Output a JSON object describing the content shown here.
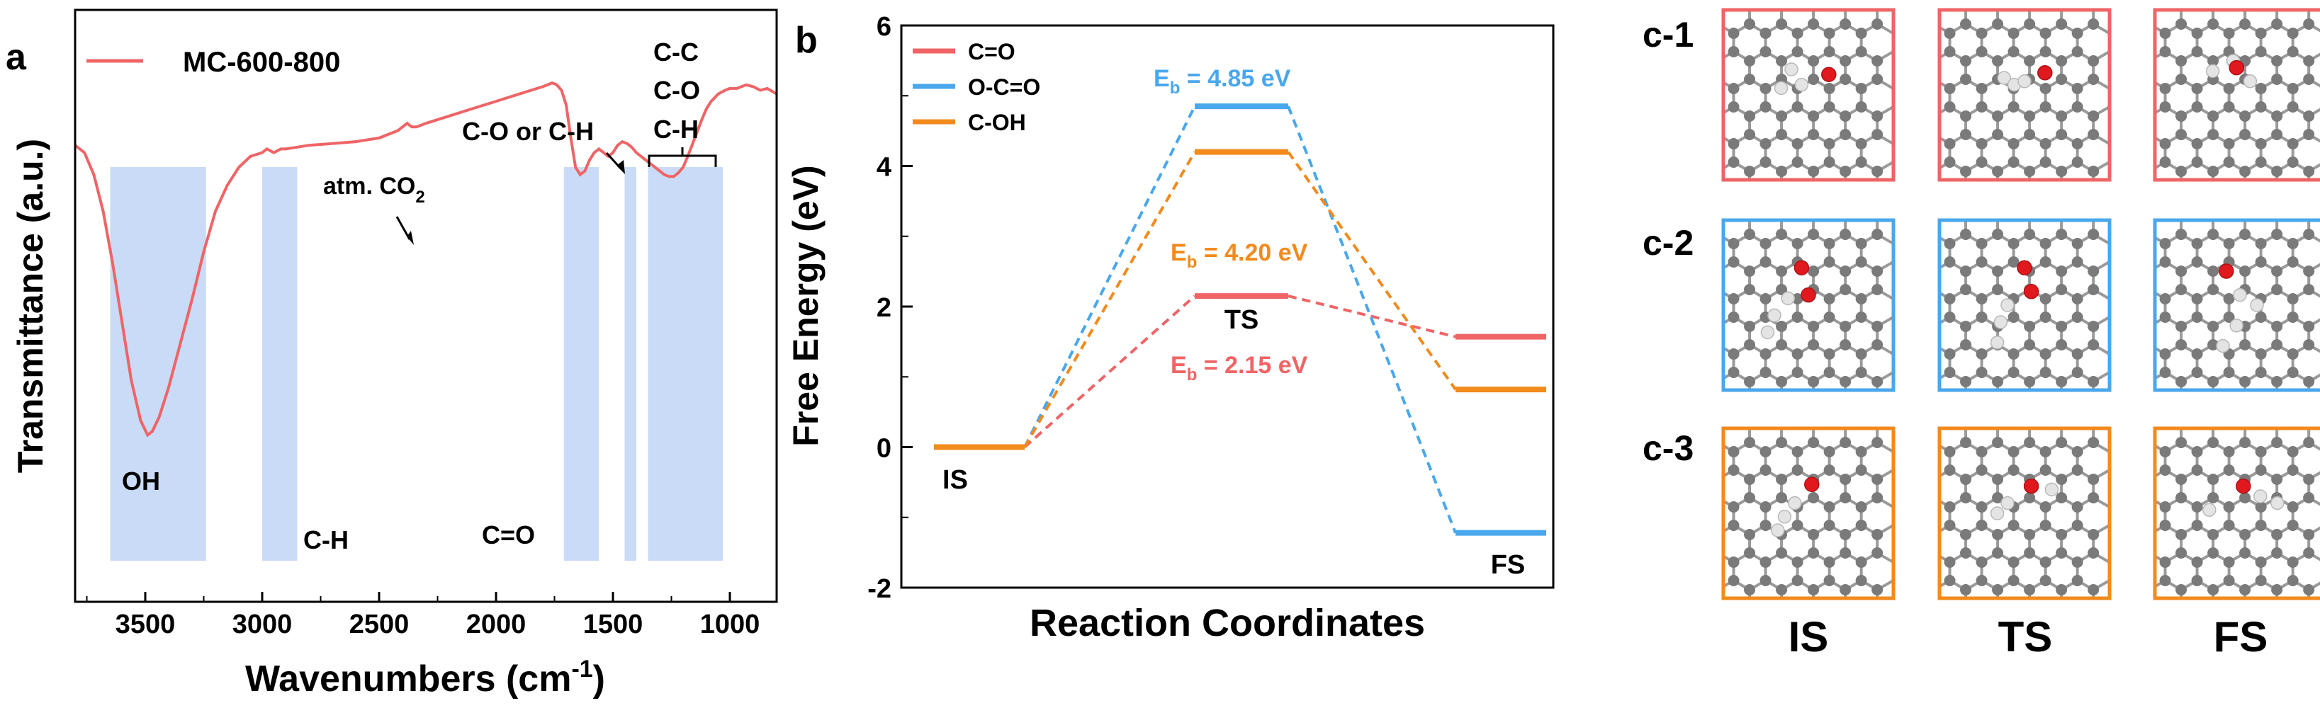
{
  "colors": {
    "red": "#ef6466",
    "blue": "#49a7ec",
    "orange": "#f28a1c",
    "band": "#c9dbf6",
    "axis": "#000000",
    "carbon": "#7a7a7a",
    "hydrogen": "#e4e4e4",
    "oxygen": "#e0191f"
  },
  "chart_data": [
    {
      "panel": "a",
      "type": "line",
      "title": "",
      "xlabel_main": "Wavenumbers (cm",
      "xlabel_sup": "-1",
      "xlabel_end": ")",
      "ylabel": "Transmittance (a.u.)",
      "xlim": [
        3800,
        800
      ],
      "ylim": [
        0,
        100
      ],
      "xticks": [
        "3500",
        "3000",
        "2500",
        "2000",
        "1500",
        "1000"
      ],
      "xtick_values": [
        3500,
        3000,
        2500,
        2000,
        1500,
        1000
      ],
      "legend": "MC-600-800",
      "series": [
        {
          "name": "MC-600-800",
          "x": [
            3800,
            3760,
            3720,
            3680,
            3640,
            3600,
            3560,
            3520,
            3490,
            3470,
            3440,
            3400,
            3350,
            3300,
            3250,
            3200,
            3150,
            3100,
            3050,
            3000,
            2980,
            2950,
            2920,
            2900,
            2850,
            2800,
            2700,
            2600,
            2500,
            2420,
            2380,
            2360,
            2340,
            2300,
            2200,
            2100,
            2000,
            1950,
            1900,
            1850,
            1800,
            1760,
            1740,
            1720,
            1700,
            1680,
            1660,
            1640,
            1620,
            1600,
            1580,
            1560,
            1540,
            1520,
            1500,
            1480,
            1460,
            1440,
            1420,
            1400,
            1380,
            1360,
            1340,
            1320,
            1300,
            1280,
            1260,
            1240,
            1220,
            1200,
            1180,
            1150,
            1120,
            1100,
            1080,
            1050,
            1020,
            1000,
            970,
            950,
            930,
            900,
            870,
            840,
            800
          ],
          "y": [
            82,
            80,
            74,
            64,
            50,
            34,
            18,
            7,
            3,
            4,
            8,
            16,
            28,
            40,
            53,
            64,
            71,
            76,
            79,
            80,
            81,
            80,
            81,
            81,
            81.5,
            82,
            82.5,
            83,
            84,
            86,
            88,
            87,
            87,
            88,
            90,
            92,
            94,
            95,
            96,
            97,
            98,
            99,
            98.5,
            97,
            93,
            84,
            76,
            74,
            75,
            78,
            80,
            81,
            80,
            79,
            80,
            82,
            83,
            82.5,
            81.5,
            80,
            79,
            78,
            77,
            76,
            75,
            74,
            73.5,
            73.5,
            74.5,
            76,
            79,
            84,
            89,
            92,
            94,
            96,
            97,
            97.5,
            97.5,
            98,
            98.5,
            98,
            97,
            97.5,
            96
          ]
        }
      ],
      "bands": [
        [
          3650,
          3240
        ],
        [
          3000,
          2850
        ],
        [
          1710,
          1560
        ],
        [
          1450,
          1400
        ],
        [
          1350,
          1030
        ]
      ],
      "annotations": {
        "oh": "OH",
        "ch_low": "C-H",
        "co_double": "C=O",
        "co2_main": "atm. CO",
        "co2_sub": "2",
        "co_or_ch": "C-O or C-H",
        "cc": "C-C",
        "co": "C-O",
        "ch_top": "C-H"
      }
    },
    {
      "panel": "b",
      "type": "line",
      "title": "",
      "xlabel": "Reaction Coordinates",
      "ylabel": "Free Energy (eV)",
      "ylim": [
        -2,
        6
      ],
      "yticks": [
        "-2",
        "0",
        "2",
        "4",
        "6"
      ],
      "ytick_values": [
        -2,
        0,
        2,
        4,
        6
      ],
      "states": [
        "IS",
        "TS",
        "FS"
      ],
      "series": [
        {
          "name": "C=O",
          "values": [
            0,
            2.15,
            1.57
          ]
        },
        {
          "name": "O-C=O",
          "values": [
            0,
            4.85,
            -1.22
          ]
        },
        {
          "name": "C-OH",
          "values": [
            0,
            4.2,
            0.82
          ]
        }
      ],
      "legend": [
        "C=O",
        "O-C=O",
        "C-OH"
      ],
      "barrier_prefix": "E",
      "barrier_sub": "b",
      "barriers": [
        " = 2.15 eV",
        " = 4.85 eV",
        " = 4.20 eV"
      ]
    }
  ],
  "figure": {
    "panel_labels": [
      "a",
      "b"
    ],
    "panel_c": {
      "rows": [
        "c-1",
        "c-2",
        "c-3"
      ],
      "columns": [
        "IS",
        "TS",
        "FS"
      ]
    }
  }
}
